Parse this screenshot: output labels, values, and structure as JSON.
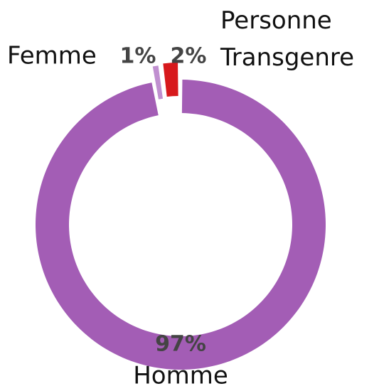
{
  "chart_data": {
    "type": "donut",
    "categories": [
      "Homme",
      "Femme",
      "Personne Transgenre"
    ],
    "values": [
      97,
      1,
      2
    ],
    "value_labels": [
      "97%",
      "1%",
      "2%"
    ],
    "colors": [
      "#a35db5",
      "#c08fd0",
      "#d7191c"
    ]
  }
}
